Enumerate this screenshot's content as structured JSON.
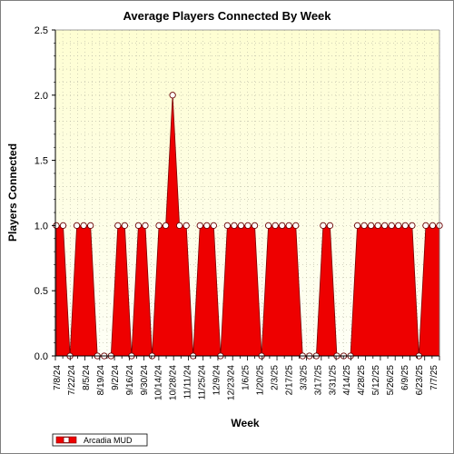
{
  "chart_data": {
    "type": "area",
    "title": "Average Players Connected By Week",
    "xlabel": "Week",
    "ylabel": "Players Connected",
    "ylim": [
      0,
      2.5
    ],
    "yticks": [
      "0.0",
      "0.5",
      "1.0",
      "1.5",
      "2.0",
      "2.5"
    ],
    "grid": true,
    "legend_position": "bottom-left",
    "x": [
      "7/8/24",
      "7/15/24",
      "7/22/24",
      "7/29/24",
      "8/5/24",
      "8/12/24",
      "8/19/24",
      "8/26/24",
      "9/2/24",
      "9/9/24",
      "9/16/24",
      "9/23/24",
      "9/30/24",
      "10/7/24",
      "10/14/24",
      "10/21/24",
      "10/28/24",
      "11/4/24",
      "11/11/24",
      "11/18/24",
      "11/25/24",
      "12/2/24",
      "12/9/24",
      "12/16/24",
      "12/23/24",
      "12/30/24",
      "1/6/25",
      "1/13/25",
      "1/20/25",
      "1/27/25",
      "2/3/25",
      "2/10/25",
      "2/17/25",
      "2/24/25",
      "3/3/25",
      "3/10/25",
      "3/17/25",
      "3/24/25",
      "3/31/25",
      "4/7/25",
      "4/14/25",
      "4/21/25",
      "4/28/25",
      "5/5/25",
      "5/12/25",
      "5/19/25",
      "5/26/25",
      "6/2/25",
      "6/9/25",
      "6/16/25",
      "6/23/25",
      "6/30/25",
      "7/7/25"
    ],
    "xtick_labels": [
      "7/8/24",
      "7/22/24",
      "8/5/24",
      "8/19/24",
      "9/2/24",
      "9/16/24",
      "9/30/24",
      "10/14/24",
      "10/28/24",
      "11/11/24",
      "11/25/24",
      "12/9/24",
      "12/23/24",
      "1/6/25",
      "1/20/25",
      "2/3/25",
      "2/17/25",
      "3/3/25",
      "3/17/25",
      "3/31/25",
      "4/14/25",
      "4/28/25",
      "5/12/25",
      "5/26/25",
      "6/9/25",
      "6/23/25",
      "7/7/25"
    ],
    "series": [
      {
        "name": "Arcadia MUD",
        "color": "#ee0000",
        "marker_color": "#ffffff",
        "values": [
          1,
          0,
          1,
          0,
          1,
          1,
          1,
          1,
          1,
          1,
          1,
          2,
          1,
          0,
          1,
          1,
          1,
          1,
          0,
          1,
          1,
          1,
          1,
          1,
          0,
          1,
          1,
          1,
          1,
          0,
          1,
          1,
          0,
          1,
          1,
          0,
          0,
          1,
          1,
          1,
          1,
          1,
          1,
          0,
          1,
          1,
          1,
          1,
          1,
          1,
          1,
          1,
          1
        ],
        "point_values": [
          1,
          1,
          0,
          1,
          1,
          1,
          0,
          0,
          0,
          1,
          1,
          0,
          1,
          1,
          0,
          1,
          1,
          2,
          1,
          1,
          0,
          1,
          1,
          1,
          0,
          1,
          1,
          1,
          1,
          1,
          0,
          1,
          1,
          1,
          1,
          1,
          0,
          0,
          0,
          1,
          1,
          0,
          0,
          0,
          1,
          1,
          1,
          1,
          1,
          1,
          1,
          1,
          1,
          0,
          1,
          1,
          1
        ]
      }
    ]
  }
}
